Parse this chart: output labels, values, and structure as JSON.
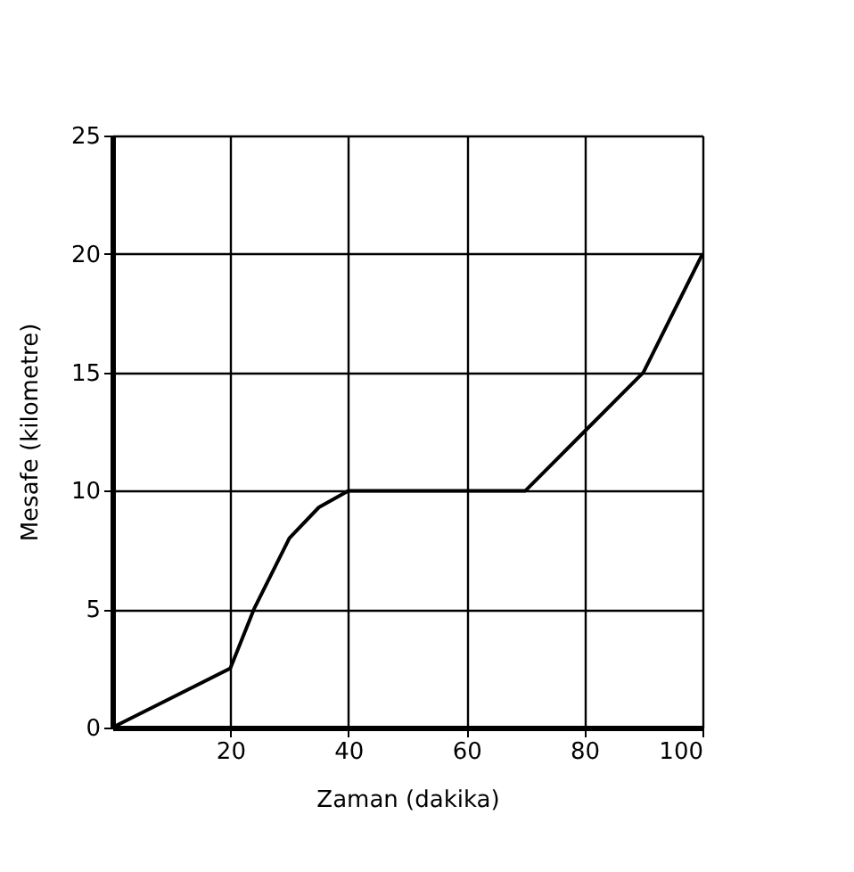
{
  "chart_data": {
    "type": "line",
    "xlabel": "Zaman (dakika)",
    "ylabel": "Mesafe (kilometre)",
    "x": [
      0,
      20,
      24,
      27,
      30,
      35,
      40,
      70,
      80,
      90,
      95,
      100
    ],
    "series": [
      {
        "color": "#000000",
        "values": [
          0,
          2.5,
          5,
          6.5,
          8,
          9.3,
          10,
          10,
          12.5,
          15,
          17.5,
          20
        ]
      }
    ],
    "xlim": [
      0,
      100
    ],
    "ylim": [
      0,
      25
    ],
    "xticks": [
      20,
      40,
      60,
      80,
      100
    ],
    "yticks": [
      0,
      5,
      10,
      15,
      20,
      25
    ],
    "grid": true,
    "marker": "none",
    "line_style": "solid"
  }
}
